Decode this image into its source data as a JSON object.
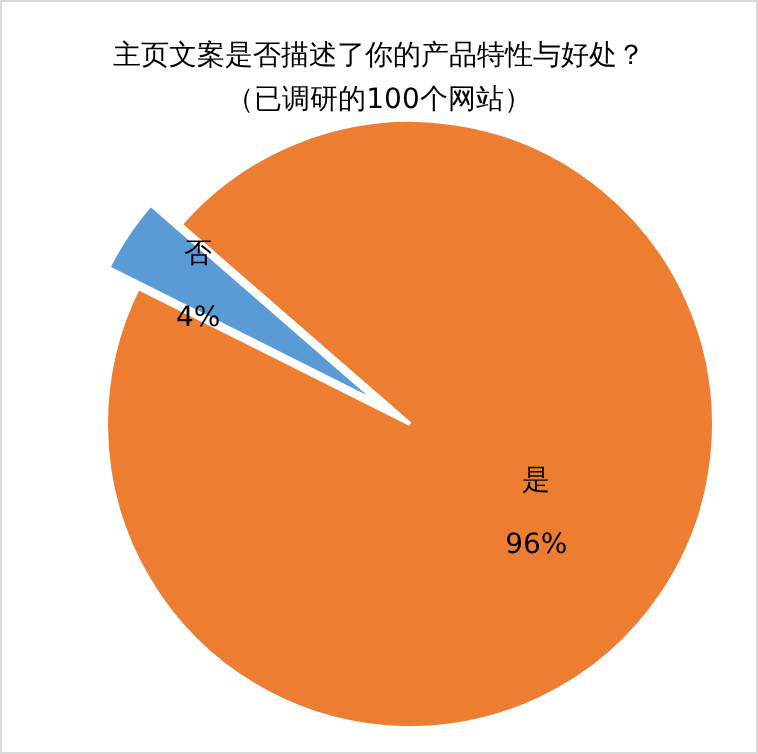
{
  "chart_data": {
    "type": "pie",
    "title": "主页文案是否描述了你的产品特性与好处？",
    "subtitle": "（已调研的100个网站）",
    "categories": [
      "是",
      "否"
    ],
    "values": [
      96,
      4
    ],
    "colors": [
      "#ed7d31",
      "#5b9bd5"
    ],
    "value_labels": [
      "96%",
      "4%"
    ]
  }
}
